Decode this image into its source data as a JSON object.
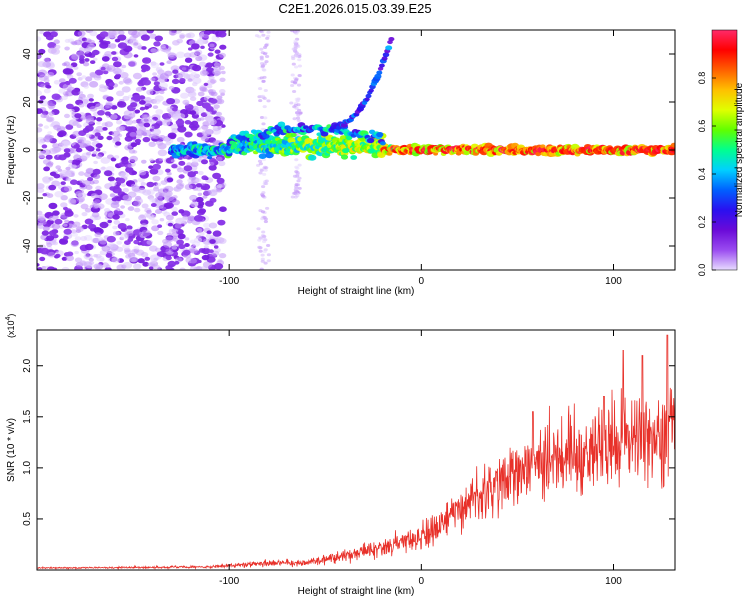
{
  "figure_title": "C2E1.2026.015.03.39.E25",
  "chart_data": [
    {
      "type": "heatmap",
      "title": "C2E1.2026.015.03.39.E25",
      "xlabel": "Height of straight line (km)",
      "ylabel": "Frequency (Hz)",
      "xlim": [
        -200,
        132
      ],
      "ylim": [
        -50,
        50
      ],
      "xticks": [
        -100,
        0,
        100
      ],
      "xtick_labels": [
        "-100",
        "0",
        "100"
      ],
      "yticks": [
        -40,
        -20,
        0,
        20,
        40
      ],
      "ytick_labels": [
        "-40",
        "-20",
        "0",
        "20",
        "40"
      ],
      "colorbar": {
        "label": "Normalized spectral amplitude",
        "range": [
          0.0,
          1.0
        ],
        "ticks": [
          0.0,
          0.2,
          0.4,
          0.6,
          0.8
        ],
        "tick_labels": [
          "0.0",
          "0.2",
          "0.4",
          "0.6",
          "0.8"
        ],
        "stops": [
          "#e8dcff",
          "#9a4cf0",
          "#6a0ad8",
          "#2a10f0",
          "#0060ff",
          "#00d0ff",
          "#00ff90",
          "#60ff00",
          "#e0ff00",
          "#ffc000",
          "#ff6000",
          "#ff0000",
          "#ff2a6a"
        ]
      },
      "features": {
        "noise_region_km": [
          -200,
          -103
        ],
        "main_band_center_hz": 0,
        "rising_track_km": [
          -45,
          -15
        ],
        "rising_track_hz": [
          10,
          48
        ]
      }
    },
    {
      "type": "line",
      "xlabel": "Height of straight line (km)",
      "ylabel": "SNR (10 * v/v)",
      "yscale_label": "(x10",
      "yscale_exponent": "4",
      "xlim": [
        -200,
        132
      ],
      "ylim": [
        0,
        2.35
      ],
      "xticks": [
        -100,
        0,
        100
      ],
      "xtick_labels": [
        "-100",
        "0",
        "100"
      ],
      "yticks": [
        0.5,
        1.0,
        1.5,
        2.0
      ],
      "ytick_labels": [
        "0.5",
        "1.0",
        "1.5",
        "2.0"
      ],
      "line_color": "#e8312a",
      "series": [
        {
          "name": "SNR",
          "envelope_x": [
            -200,
            -150,
            -110,
            -80,
            -60,
            -40,
            -20,
            0,
            10,
            20,
            30,
            40,
            50,
            60,
            70,
            80,
            90,
            100,
            110,
            120,
            132
          ],
          "envelope_mean": [
            0.02,
            0.025,
            0.03,
            0.07,
            0.07,
            0.14,
            0.22,
            0.32,
            0.45,
            0.6,
            0.7,
            0.82,
            0.95,
            1.05,
            1.1,
            1.15,
            1.2,
            1.25,
            1.3,
            1.32,
            1.35
          ],
          "envelope_amp": [
            0.01,
            0.015,
            0.02,
            0.05,
            0.05,
            0.1,
            0.14,
            0.2,
            0.25,
            0.3,
            0.38,
            0.45,
            0.5,
            0.55,
            0.58,
            0.6,
            0.62,
            0.65,
            0.68,
            0.7,
            0.75
          ],
          "peak_values": [
            {
              "x": 128,
              "y": 2.3
            },
            {
              "x": 115,
              "y": 2.1
            },
            {
              "x": 105,
              "y": 2.15
            },
            {
              "x": 95,
              "y": 1.7
            },
            {
              "x": 58,
              "y": 1.55
            }
          ]
        }
      ]
    }
  ]
}
